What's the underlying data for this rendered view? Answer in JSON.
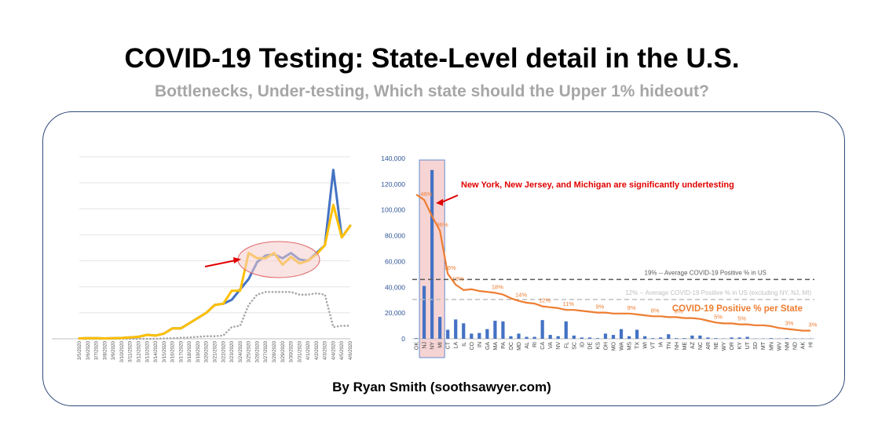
{
  "header": {
    "title": "COVID-19 Testing: State-Level detail in the U.S.",
    "subtitle": "Bottlenecks, Under-testing, Which state should the Upper 1% hideout?",
    "byline": "By Ryan Smith (soothsawyer.com)"
  },
  "colors": {
    "blue": "#4472c4",
    "yellow": "#ffc000",
    "gray_dotted": "#a6a6a6",
    "orange": "#ed7d31",
    "highlight": "#f4cccc",
    "red": "#e00000"
  },
  "chart_data": [
    {
      "type": "line",
      "x": [
        "3/5/2020",
        "3/6/2020",
        "3/7/2020",
        "3/8/2020",
        "3/9/2020",
        "3/10/2020",
        "3/11/2020",
        "3/12/2020",
        "3/13/2020",
        "3/14/2020",
        "3/15/2020",
        "3/16/2020",
        "3/17/2020",
        "3/18/2020",
        "3/19/2020",
        "3/20/2020",
        "3/21/2020",
        "3/22/2020",
        "3/23/2020",
        "3/24/2020",
        "3/25/2020",
        "3/26/2020",
        "3/27/2020",
        "3/28/2020",
        "3/29/2020",
        "3/30/2020",
        "3/31/2020",
        "4/1/2020",
        "4/2/2020",
        "4/3/2020",
        "4/4/2020",
        "4/5/2020",
        "4/6/2020"
      ],
      "ylim": [
        0,
        140000
      ],
      "grid": true,
      "series": [
        {
          "color": "blue",
          "style": "solid",
          "values": [
            300,
            400,
            400,
            300,
            500,
            600,
            1000,
            1500,
            3000,
            2500,
            4000,
            8000,
            8000,
            12000,
            16000,
            20000,
            26000,
            27000,
            30000,
            38000,
            46000,
            59000,
            64000,
            65000,
            62000,
            66000,
            61000,
            60000,
            66000,
            72000,
            130000,
            78000,
            87000
          ]
        },
        {
          "color": "yellow",
          "style": "solid",
          "values": [
            300,
            400,
            400,
            300,
            500,
            600,
            1000,
            1500,
            3000,
            2500,
            4000,
            8000,
            8000,
            12000,
            16000,
            20000,
            26000,
            27000,
            37000,
            37000,
            66000,
            62000,
            62000,
            66000,
            57000,
            63000,
            58000,
            60000,
            65000,
            72000,
            103000,
            78000,
            87000
          ]
        },
        {
          "color": "gray_dotted",
          "style": "dotted",
          "values": [
            0,
            0,
            0,
            0,
            0,
            0,
            0,
            0,
            0,
            0,
            300,
            500,
            800,
            1000,
            1500,
            2000,
            2000,
            2500,
            9000,
            10000,
            26000,
            34000,
            36000,
            36000,
            36000,
            36000,
            34000,
            34000,
            35000,
            34000,
            9000,
            10000,
            10000
          ]
        }
      ],
      "annotations": [
        {
          "type": "ellipse",
          "note": "highlight of testing plateau (3/24 - 4/1)"
        },
        {
          "type": "arrow",
          "points_to": "ellipse"
        }
      ]
    },
    {
      "type": "bar",
      "categories": [
        "OK",
        "NJ",
        "NY",
        "MI",
        "CT",
        "LA",
        "IL",
        "CO",
        "IN",
        "GA",
        "MA",
        "PA",
        "DC",
        "MD",
        "AL",
        "RI",
        "CA",
        "VA",
        "NV",
        "FL",
        "SC",
        "ID",
        "DE",
        "KS",
        "OH",
        "MO",
        "WA",
        "MS",
        "TX",
        "WI",
        "VT",
        "IA",
        "TN",
        "NH",
        "ME",
        "AZ",
        "NC",
        "AR",
        "NE",
        "WY",
        "OR",
        "KY",
        "UT",
        "SD",
        "MT",
        "MN",
        "WV",
        "NM",
        "ND",
        "AK",
        "HI"
      ],
      "values": [
        500,
        41000,
        131000,
        17000,
        7000,
        15000,
        12000,
        4000,
        4500,
        7500,
        14000,
        13500,
        2000,
        4000,
        1500,
        1500,
        14500,
        3000,
        2000,
        13500,
        2500,
        1000,
        1000,
        500,
        4000,
        3000,
        7500,
        2000,
        7000,
        2000,
        500,
        1000,
        3500,
        500,
        500,
        2500,
        2500,
        1000,
        500,
        200,
        1000,
        1000,
        1500,
        200,
        200,
        500,
        200,
        500,
        200,
        200,
        200
      ],
      "ylim": [
        0,
        140000
      ],
      "yticks": [
        "0",
        "20,000",
        "40,000",
        "60,000",
        "80,000",
        "100,000",
        "120,000",
        "140,000"
      ],
      "highlight_categories": [
        "NJ",
        "NY",
        "MI"
      ],
      "series": [
        {
          "name": "COVID-19 Positive % per State",
          "type": "line",
          "color": "orange",
          "values": [
            0.8,
            0.77,
            0.68,
            0.6,
            0.36,
            0.3,
            0.27,
            0.275,
            0.265,
            0.26,
            0.255,
            0.245,
            0.225,
            0.21,
            0.2,
            0.195,
            0.18,
            0.175,
            0.17,
            0.16,
            0.16,
            0.155,
            0.15,
            0.145,
            0.145,
            0.14,
            0.14,
            0.14,
            0.135,
            0.13,
            0.125,
            0.125,
            0.12,
            0.12,
            0.115,
            0.115,
            0.11,
            0.1,
            0.09,
            0.085,
            0.085,
            0.08,
            0.08,
            0.075,
            0.075,
            0.07,
            0.06,
            0.055,
            0.05,
            0.045,
            0.045
          ],
          "labels": [
            {
              "category": "NJ",
              "text": "46%"
            },
            {
              "category": "MI",
              "text": "36%"
            },
            {
              "category": "CT",
              "text": "26%"
            },
            {
              "category": "LA",
              "text": "19%"
            },
            {
              "category": "MA",
              "text": "18%"
            },
            {
              "category": "MD",
              "text": "14%"
            },
            {
              "category": "CA",
              "text": "12%"
            },
            {
              "category": "FL",
              "text": "11%"
            },
            {
              "category": "KS",
              "text": "9%"
            },
            {
              "category": "MS",
              "text": "9%"
            },
            {
              "category": "VT",
              "text": "8%"
            },
            {
              "category": "NH",
              "text": "8%"
            },
            {
              "category": "NE",
              "text": "5%"
            },
            {
              "category": "KY",
              "text": "5%"
            },
            {
              "category": "NM",
              "text": "3%"
            },
            {
              "category": "HI",
              "text": "3%"
            }
          ]
        }
      ],
      "reference_lines": [
        {
          "text": "19% -- Average COVID-19 Positive % in US",
          "color": "#595959",
          "bar_scale_y": 46000
        },
        {
          "text": "12% -- Average COVID-19 Positive % in US (excluding NY, NJ, MI)",
          "color": "#bfbfbf",
          "bar_scale_y": 30500
        }
      ],
      "annotations": [
        {
          "text": "New York, New Jersey, and Michigan are significantly undertesting",
          "color": "red",
          "arrow_to": "NY"
        }
      ]
    }
  ]
}
